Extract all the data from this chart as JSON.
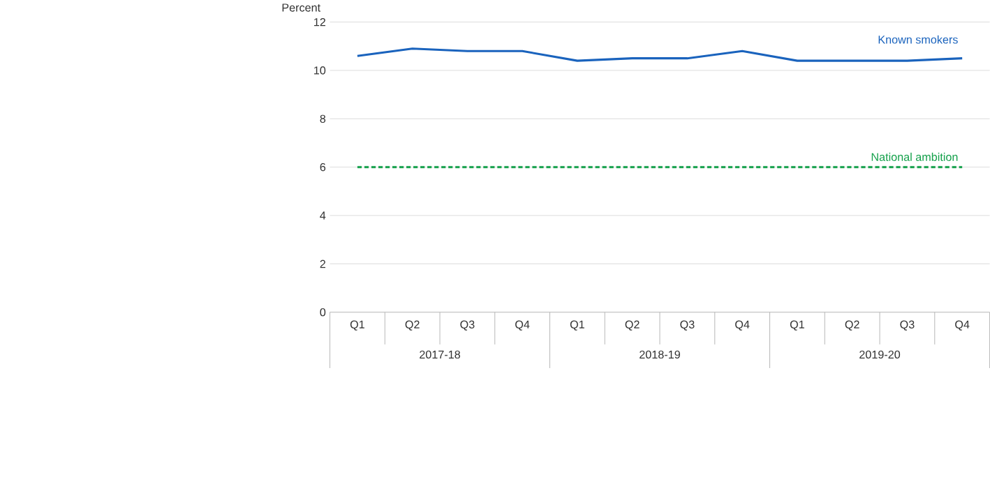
{
  "chart_data": {
    "type": "line",
    "ylabel": "Percent",
    "categories": [
      "Q1",
      "Q2",
      "Q3",
      "Q4",
      "Q1",
      "Q2",
      "Q3",
      "Q4",
      "Q1",
      "Q2",
      "Q3",
      "Q4"
    ],
    "series": [
      {
        "name": "Known smokers",
        "color": "#1a63bd",
        "values": [
          10.6,
          10.9,
          10.8,
          10.8,
          10.4,
          10.5,
          10.5,
          10.8,
          10.4,
          10.4,
          10.4,
          10.5
        ]
      }
    ],
    "ref_lines": [
      {
        "axis": "y",
        "value": 6,
        "label": "National ambition",
        "color": "#13a04a",
        "line_style": "dashed"
      }
    ],
    "annotations": [
      "2017-18",
      "2018-19",
      "2019-20"
    ],
    "ylim": [
      0,
      12
    ],
    "yticks": [
      0,
      2,
      4,
      6,
      8,
      10,
      12
    ],
    "grid": "y",
    "line_style": "solid",
    "marker": "none"
  }
}
